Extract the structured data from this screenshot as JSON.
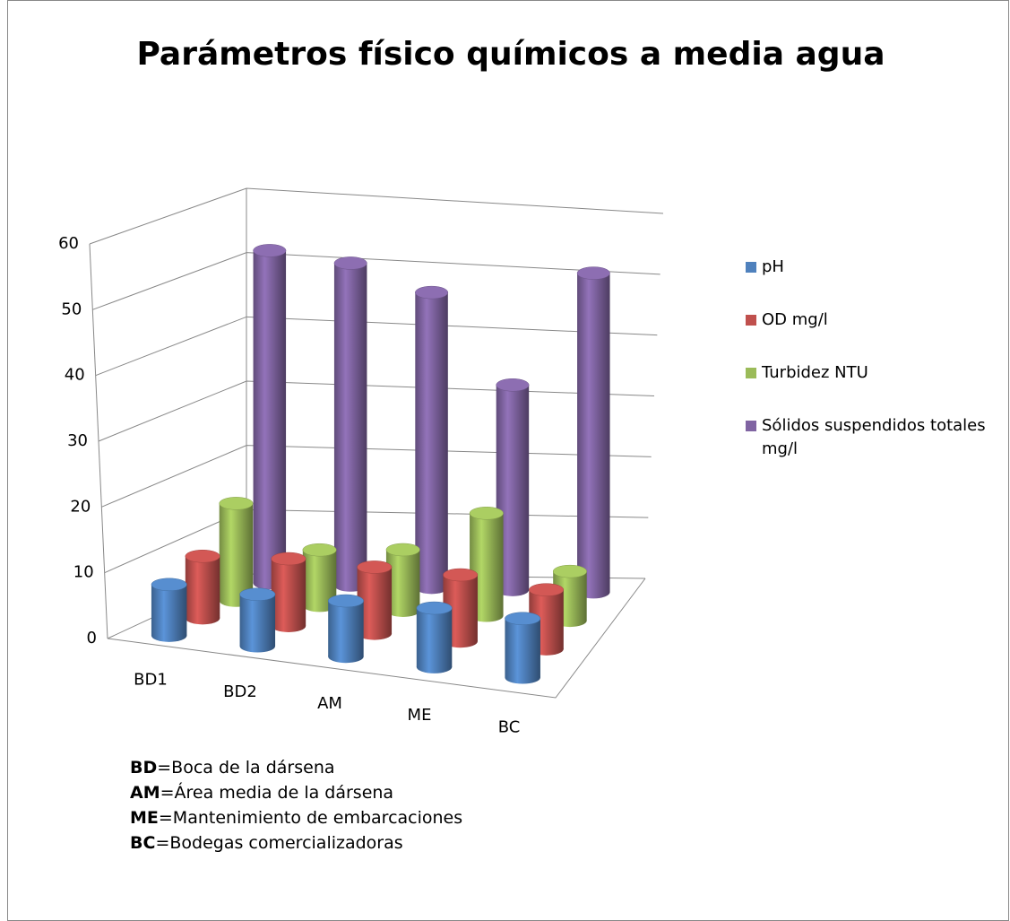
{
  "chart_data": {
    "type": "bar3d",
    "title": "Parámetros físico químicos a media agua",
    "categories": [
      "BD1",
      "BD2",
      "AM",
      "ME",
      "BC"
    ],
    "series": [
      {
        "name": "pH",
        "color": "#4f81bd",
        "values": [
          7.8,
          7.9,
          8.5,
          9,
          9
        ]
      },
      {
        "name": "OD mg/l",
        "color": "#c0504d",
        "values": [
          9.5,
          10.3,
          10.2,
          10.2,
          9.1
        ]
      },
      {
        "name": "Turbidez NTU",
        "color": "#9bbb59",
        "values": [
          15,
          8.6,
          9.4,
          15.8,
          7.6
        ]
      },
      {
        "name": "Sólidos suspendidos totales mg/l",
        "color": "#8064a2",
        "values": [
          51.6,
          50,
          45.8,
          31.8,
          49.5
        ]
      }
    ],
    "ylim": [
      0,
      60
    ],
    "yticks": [
      0,
      10,
      20,
      30,
      40,
      50,
      60
    ],
    "grid": true,
    "legend": "right",
    "notes": [
      {
        "abbr": "BD",
        "text": "=Boca de la dársena"
      },
      {
        "abbr": "AM",
        "text": "=Área media de la dársena"
      },
      {
        "abbr": "ME",
        "text": "=Mantenimiento de embarcaciones"
      },
      {
        "abbr": "BC",
        "text": "=Bodegas comercializadoras"
      }
    ]
  }
}
